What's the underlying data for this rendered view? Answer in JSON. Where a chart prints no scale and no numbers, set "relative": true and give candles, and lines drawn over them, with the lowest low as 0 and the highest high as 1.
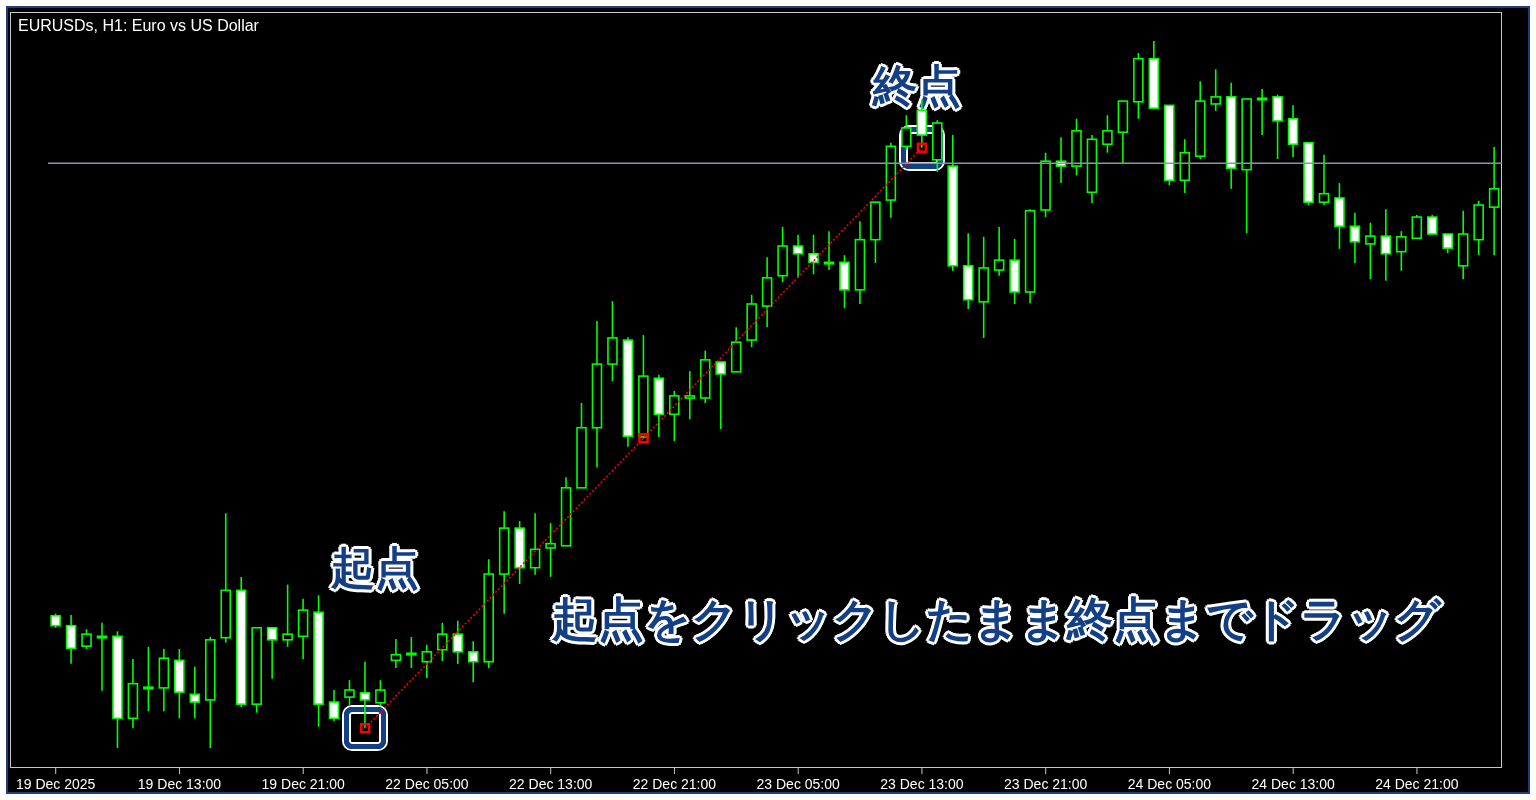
{
  "chart_data": {
    "type": "candlestick",
    "title": "EURUSDs, H1: Euro vs US Dollar",
    "relative": true,
    "color": "#00ff00",
    "categories": [
      "19 Dec 2025",
      null,
      null,
      null,
      null,
      null,
      null,
      null,
      "19 Dec 13:00",
      null,
      null,
      null,
      null,
      null,
      null,
      null,
      "19 Dec 21:00",
      null,
      null,
      null,
      null,
      null,
      null,
      null,
      "22 Dec 05:00",
      null,
      null,
      null,
      null,
      null,
      null,
      null,
      "22 Dec 13:00",
      null,
      null,
      null,
      null,
      null,
      null,
      null,
      "22 Dec 21:00",
      null,
      null,
      null,
      null,
      null,
      null,
      null,
      "23 Dec 05:00",
      null,
      null,
      null,
      null,
      null,
      null,
      null,
      "23 Dec 13:00",
      null,
      null,
      null,
      null,
      null,
      null,
      null,
      "23 Dec 21:00",
      null,
      null,
      null,
      null,
      null,
      null,
      null,
      "24 Dec 05:00",
      null,
      null,
      null,
      null,
      null,
      null,
      null,
      "24 Dec 13:00",
      null,
      null,
      null,
      null,
      null,
      null,
      null,
      "24 Dec 21:00",
      null,
      null,
      null,
      null,
      null
    ],
    "ohlc": [
      [
        0.187,
        0.19,
        0.17,
        0.173
      ],
      [
        0.173,
        0.188,
        0.119,
        0.141
      ],
      [
        0.144,
        0.168,
        0.14,
        0.161
      ],
      [
        0.158,
        0.177,
        0.081,
        0.158
      ],
      [
        0.158,
        0.165,
        0,
        0.042
      ],
      [
        0.042,
        0.126,
        0.028,
        0.091
      ],
      [
        0.086,
        0.143,
        0.052,
        0.086
      ],
      [
        0.085,
        0.14,
        0.052,
        0.127
      ],
      [
        0.124,
        0.14,
        0.042,
        0.079
      ],
      [
        0.076,
        0.115,
        0.042,
        0.065
      ],
      [
        0.068,
        0.157,
        0,
        0.153
      ],
      [
        0.156,
        0.332,
        0.149,
        0.223
      ],
      [
        0.223,
        0.242,
        0.058,
        0.062
      ],
      [
        0.062,
        0.17,
        0.05,
        0.17
      ],
      [
        0.17,
        0.17,
        0.098,
        0.153
      ],
      [
        0.153,
        0.231,
        0.143,
        0.161
      ],
      [
        0.158,
        0.211,
        0.126,
        0.195
      ],
      [
        0.192,
        0.216,
        0.03,
        0.062
      ],
      [
        0.065,
        0.082,
        0.038,
        0.042
      ],
      [
        0.072,
        0.096,
        0.061,
        0.082
      ],
      [
        0.078,
        0.122,
        0.028,
        0.068
      ],
      [
        0.064,
        0.096,
        0.059,
        0.082
      ],
      [
        0.124,
        0.154,
        0.113,
        0.132
      ],
      [
        0.134,
        0.157,
        0.113,
        0.134
      ],
      [
        0.122,
        0.146,
        0.099,
        0.136
      ],
      [
        0.139,
        0.177,
        0.123,
        0.161
      ],
      [
        0.161,
        0.18,
        0.119,
        0.136
      ],
      [
        0.136,
        0.151,
        0.093,
        0.122
      ],
      [
        0.122,
        0.267,
        0.113,
        0.246
      ],
      [
        0.246,
        0.335,
        0.19,
        0.311
      ],
      [
        0.311,
        0.321,
        0.232,
        0.255
      ],
      [
        0.255,
        0.332,
        0.245,
        0.281
      ],
      [
        0.283,
        0.318,
        0.242,
        0.289
      ],
      [
        0.286,
        0.383,
        0.286,
        0.368
      ],
      [
        0.368,
        0.488,
        0.368,
        0.453
      ],
      [
        0.453,
        0.604,
        0.397,
        0.543
      ],
      [
        0.543,
        0.632,
        0.519,
        0.58
      ],
      [
        0.577,
        0.581,
        0.426,
        0.441
      ],
      [
        0.44,
        0.584,
        0.438,
        0.526
      ],
      [
        0.523,
        0.528,
        0.44,
        0.472
      ],
      [
        0.472,
        0.505,
        0.434,
        0.498
      ],
      [
        0.495,
        0.533,
        0.465,
        0.498
      ],
      [
        0.495,
        0.562,
        0.488,
        0.549
      ],
      [
        0.546,
        0.546,
        0.451,
        0.529
      ],
      [
        0.532,
        0.595,
        0.532,
        0.574
      ],
      [
        0.577,
        0.641,
        0.567,
        0.628
      ],
      [
        0.625,
        0.694,
        0.595,
        0.665
      ],
      [
        0.668,
        0.737,
        0.659,
        0.71
      ],
      [
        0.71,
        0.726,
        0.665,
        0.699
      ],
      [
        0.699,
        0.726,
        0.67,
        0.687
      ],
      [
        0.687,
        0.731,
        0.676,
        0.687
      ],
      [
        0.687,
        0.697,
        0.622,
        0.648
      ],
      [
        0.648,
        0.745,
        0.628,
        0.719
      ],
      [
        0.719,
        0.772,
        0.686,
        0.772
      ],
      [
        0.775,
        0.856,
        0.75,
        0.851
      ],
      [
        0.851,
        0.895,
        0.846,
        0.877
      ],
      [
        0.902,
        0.917,
        0.849,
        0.867
      ],
      [
        0.832,
        0.888,
        0.815,
        0.884
      ],
      [
        0.823,
        0.867,
        0.675,
        0.682
      ],
      [
        0.682,
        0.728,
        0.621,
        0.634
      ],
      [
        0.631,
        0.723,
        0.58,
        0.679
      ],
      [
        0.676,
        0.737,
        0.668,
        0.69
      ],
      [
        0.69,
        0.72,
        0.628,
        0.645
      ],
      [
        0.645,
        0.762,
        0.629,
        0.76
      ],
      [
        0.761,
        0.842,
        0.751,
        0.83
      ],
      [
        0.83,
        0.864,
        0.799,
        0.823
      ],
      [
        0.823,
        0.89,
        0.81,
        0.873
      ],
      [
        0.786,
        0.867,
        0.771,
        0.861
      ],
      [
        0.854,
        0.895,
        0.842,
        0.873
      ],
      [
        0.871,
        0.915,
        0.827,
        0.915
      ],
      [
        0.914,
        0.983,
        0.89,
        0.975
      ],
      [
        0.975,
        1,
        0.905,
        0.905
      ],
      [
        0.909,
        0.909,
        0.796,
        0.803
      ],
      [
        0.803,
        0.861,
        0.785,
        0.842
      ],
      [
        0.837,
        0.943,
        0.833,
        0.915
      ],
      [
        0.911,
        0.96,
        0.901,
        0.921
      ],
      [
        0.921,
        0.941,
        0.791,
        0.82
      ],
      [
        0.818,
        0.918,
        0.728,
        0.918
      ],
      [
        0.919,
        0.932,
        0.867,
        0.919
      ],
      [
        0.921,
        0.924,
        0.833,
        0.887
      ],
      [
        0.89,
        0.909,
        0.836,
        0.854
      ],
      [
        0.856,
        0.857,
        0.768,
        0.772
      ],
      [
        0.772,
        0.839,
        0.768,
        0.784
      ],
      [
        0.778,
        0.799,
        0.706,
        0.738
      ],
      [
        0.738,
        0.757,
        0.686,
        0.716
      ],
      [
        0.713,
        0.743,
        0.663,
        0.724
      ],
      [
        0.724,
        0.762,
        0.661,
        0.699
      ],
      [
        0.702,
        0.731,
        0.675,
        0.723
      ],
      [
        0.721,
        0.754,
        0.721,
        0.751
      ],
      [
        0.751,
        0.754,
        0.727,
        0.727
      ],
      [
        0.727,
        0.727,
        0.7,
        0.707
      ],
      [
        0.682,
        0.76,
        0.663,
        0.727
      ],
      [
        0.719,
        0.774,
        0.697,
        0.768
      ],
      [
        0.765,
        0.85,
        0.697,
        0.791
      ]
    ],
    "series": [
      {
        "type": "line",
        "color": "#ff0000",
        "line_style": "dotted",
        "marker": "square",
        "values": [
          null,
          null,
          null,
          null,
          null,
          null,
          null,
          null,
          null,
          null,
          null,
          null,
          null,
          null,
          null,
          null,
          null,
          null,
          null,
          null,
          0.028,
          null,
          null,
          null,
          null,
          null,
          null,
          null,
          null,
          null,
          null,
          null,
          null,
          null,
          null,
          null,
          null,
          null,
          0.438,
          null,
          null,
          null,
          null,
          null,
          null,
          null,
          null,
          null,
          null,
          null,
          null,
          null,
          null,
          null,
          null,
          null,
          0.849,
          null,
          null,
          null,
          null,
          null,
          null,
          null,
          null,
          null,
          null,
          null,
          null,
          null,
          null,
          null,
          null,
          null,
          null,
          null,
          null,
          null,
          null,
          null,
          null,
          null,
          null,
          null,
          null,
          null,
          null,
          null,
          null,
          null,
          null,
          null,
          null,
          null
        ]
      }
    ],
    "ref_lines": [
      {
        "axis": "y",
        "value": 0.827,
        "color": "#8895a5"
      }
    ],
    "annotations": [
      "起点",
      "終点",
      "起点をクリックしたまま終点までドラッグ"
    ]
  }
}
